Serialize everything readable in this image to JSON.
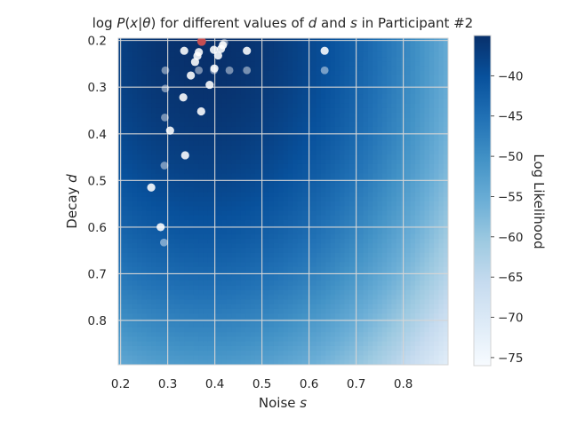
{
  "chart_data": {
    "type": "heatmap",
    "title": "log P(x|θ) for different values of d and s in Participant #2",
    "title_parts": {
      "pre": "log ",
      "P": "P",
      "paren_open": "(",
      "x": "x",
      "bar": "|",
      "theta": "θ",
      "paren_close": ")",
      "mid1": " for different values of ",
      "d": "d",
      "and": " and ",
      "s": "s",
      "post": " in Participant #2"
    },
    "xlabel": "Noise s",
    "xlabel_parts": {
      "text": "Noise ",
      "var": "s"
    },
    "ylabel": "Decay d",
    "ylabel_parts": {
      "text": "Decay ",
      "var": "d"
    },
    "xlim": [
      0.195,
      0.895
    ],
    "ylim": [
      0.195,
      0.895
    ],
    "y_inverted": true,
    "x_ticks": [
      0.2,
      0.3,
      0.4,
      0.5,
      0.6,
      0.7,
      0.8
    ],
    "x_tick_labels": [
      "0.2",
      "0.3",
      "0.4",
      "0.5",
      "0.6",
      "0.7",
      "0.8"
    ],
    "y_ticks": [
      0.2,
      0.3,
      0.4,
      0.5,
      0.6,
      0.7,
      0.8
    ],
    "y_tick_labels": [
      "0.2",
      "0.3",
      "0.4",
      "0.5",
      "0.6",
      "0.7",
      "0.8"
    ],
    "grid": true,
    "colormap": "Blues",
    "color_range": [
      -76,
      -35
    ],
    "colorbar": {
      "label": "Log Likelihood",
      "ticks": [
        -40,
        -45,
        -50,
        -55,
        -60,
        -65,
        -70,
        -75
      ],
      "tick_labels": [
        "−40",
        "−45",
        "−50",
        "−55",
        "−60",
        "−65",
        "−70",
        "−75"
      ]
    },
    "heatmap_model": {
      "max": -35,
      "best_s": 0.38,
      "best_d": 0.2,
      "curvature_s": 75,
      "curvature_d": 35
    },
    "points_solid": [
      {
        "s": 0.265,
        "d": 0.515
      },
      {
        "s": 0.285,
        "d": 0.6
      },
      {
        "s": 0.305,
        "d": 0.393
      },
      {
        "s": 0.333,
        "d": 0.322
      },
      {
        "s": 0.335,
        "d": 0.222
      },
      {
        "s": 0.337,
        "d": 0.446
      },
      {
        "s": 0.349,
        "d": 0.275
      },
      {
        "s": 0.358,
        "d": 0.246
      },
      {
        "s": 0.363,
        "d": 0.233
      },
      {
        "s": 0.366,
        "d": 0.225
      },
      {
        "s": 0.371,
        "d": 0.352
      },
      {
        "s": 0.389,
        "d": 0.295
      },
      {
        "s": 0.398,
        "d": 0.22
      },
      {
        "s": 0.399,
        "d": 0.26
      },
      {
        "s": 0.407,
        "d": 0.232
      },
      {
        "s": 0.413,
        "d": 0.218
      },
      {
        "s": 0.417,
        "d": 0.21
      },
      {
        "s": 0.468,
        "d": 0.222
      },
      {
        "s": 0.633,
        "d": 0.222
      }
    ],
    "points_faded": [
      {
        "s": 0.295,
        "d": 0.264
      },
      {
        "s": 0.295,
        "d": 0.303
      },
      {
        "s": 0.294,
        "d": 0.365
      },
      {
        "s": 0.293,
        "d": 0.468
      },
      {
        "s": 0.292,
        "d": 0.633
      },
      {
        "s": 0.366,
        "d": 0.264
      },
      {
        "s": 0.398,
        "d": 0.264
      },
      {
        "s": 0.431,
        "d": 0.264
      },
      {
        "s": 0.468,
        "d": 0.264
      },
      {
        "s": 0.633,
        "d": 0.264
      },
      {
        "s": 0.42,
        "d": 0.205
      }
    ],
    "best_point": {
      "s": 0.372,
      "d": 0.202
    },
    "colors": {
      "point": "#ffffff",
      "best_point": "#c44e52",
      "grid": "#d5d5d5",
      "text": "#262626"
    }
  }
}
